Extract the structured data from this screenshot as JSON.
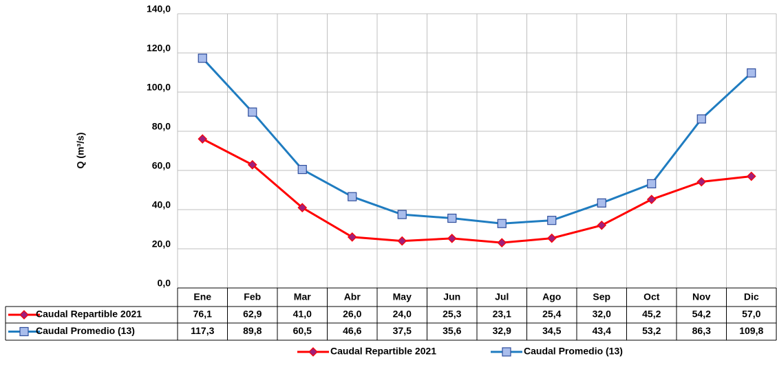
{
  "chart_data": {
    "type": "line",
    "y_label": "Q (m³/s)",
    "categories": [
      "Ene",
      "Feb",
      "Mar",
      "Abr",
      "May",
      "Jun",
      "Jul",
      "Ago",
      "Sep",
      "Oct",
      "Nov",
      "Dic"
    ],
    "series": [
      {
        "name": "Caudal Repartible 2021",
        "color": "#ff0000",
        "marker": "diamond",
        "marker_fill": "#a0207a",
        "values": [
          76.1,
          62.9,
          41.0,
          26.0,
          24.0,
          25.3,
          23.1,
          25.4,
          32.0,
          45.2,
          54.2,
          57.0
        ],
        "value_labels": [
          "76,1",
          "62,9",
          "41,0",
          "26,0",
          "24,0",
          "25,3",
          "23,1",
          "25,4",
          "32,0",
          "45,2",
          "54,2",
          "57,0"
        ]
      },
      {
        "name": "Caudal Promedio (13)",
        "color": "#1f7cc0",
        "marker": "square",
        "marker_fill": "#a9bdec",
        "values": [
          117.3,
          89.8,
          60.5,
          46.6,
          37.5,
          35.6,
          32.9,
          34.5,
          43.4,
          53.2,
          86.3,
          109.8
        ],
        "value_labels": [
          "117,3",
          "89,8",
          "60,5",
          "46,6",
          "37,5",
          "35,6",
          "32,9",
          "34,5",
          "43,4",
          "53,2",
          "86,3",
          "109,8"
        ]
      }
    ],
    "ylim": [
      0,
      140
    ],
    "yticks": [
      {
        "value": 0,
        "label": "0,0"
      },
      {
        "value": 20,
        "label": "20,0"
      },
      {
        "value": 40,
        "label": "40,0"
      },
      {
        "value": 60,
        "label": "60,0"
      },
      {
        "value": 80,
        "label": "80,0"
      },
      {
        "value": 100,
        "label": "100,0"
      },
      {
        "value": 120,
        "label": "120,0"
      },
      {
        "value": 140,
        "label": "140,0"
      }
    ],
    "grid": true,
    "legend": "bottom"
  }
}
